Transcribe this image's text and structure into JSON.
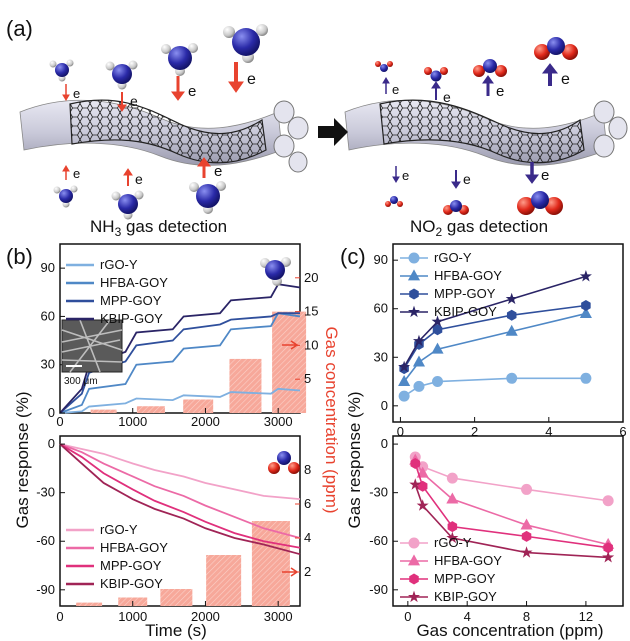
{
  "panels": {
    "a": {
      "label": "(a)",
      "left_caption": "NH",
      "left_caption_sub": "3",
      "left_caption_rest": " gas detection",
      "right_caption": "NO",
      "right_caption_sub": "2",
      "right_caption_rest": " gas detection",
      "electron_label": "e"
    },
    "b": {
      "label": "(b)",
      "y_title": "Gas response (%)",
      "y2_title": "Gas concentration (ppm)",
      "x_title": "Time (s)",
      "inset_scale": "300 μm",
      "x_ticks": [
        "0",
        "1000",
        "2000",
        "3000"
      ],
      "top_y_ticks": [
        "0",
        "30",
        "60",
        "90"
      ],
      "top_y2_ticks": [
        "5",
        "10",
        "15",
        "20"
      ],
      "bottom_y_ticks": [
        "0",
        "-30",
        "-60",
        "-90"
      ],
      "bottom_y2_ticks": [
        "2",
        "4",
        "6",
        "8"
      ],
      "legend_top": [
        "rGO-Y",
        "HFBA-GOY",
        "MPP-GOY",
        "KBIP-GOY"
      ],
      "legend_bottom": [
        "rGO-Y",
        "HFBA-GOY",
        "MPP-GOY",
        "KBIP-GOY"
      ]
    },
    "c": {
      "label": "(c)",
      "y_title": "Gas response (%)",
      "x_title": "Gas concentration (ppm)",
      "top_x_ticks": [
        "0",
        "2",
        "4",
        "6"
      ],
      "top_y_ticks": [
        "0",
        "30",
        "60",
        "90"
      ],
      "bottom_x_ticks": [
        "0",
        "4",
        "8",
        "12"
      ],
      "bottom_y_ticks": [
        "0",
        "-30",
        "-60",
        "-90"
      ],
      "legend_top": [
        "rGO-Y",
        "HFBA-GOY",
        "MPP-GOY",
        "KBIP-GOY"
      ],
      "legend_bottom": [
        "rGO-Y",
        "HFBA-GOY",
        "MPP-GOY",
        "KBIP-GOY"
      ]
    }
  },
  "colors": {
    "rGO_Y_nh3": "#7fb0e0",
    "HFBA_nh3": "#4f88c6",
    "MPP_nh3": "#2f4f9c",
    "KBIP_nh3": "#2a2466",
    "rGO_Y_no2": "#f2a2c8",
    "HFBA_no2": "#ec6aa6",
    "MPP_no2": "#e0307c",
    "KBIP_no2": "#a02456",
    "conc_bar": "#f7a89a",
    "accent_red": "#e8432f"
  },
  "chart_data": [
    {
      "type": "line",
      "panel": "b-top",
      "xlim": [
        0,
        3300
      ],
      "ylim": [
        0,
        105
      ],
      "y2lim": [
        0,
        25
      ],
      "series": [
        {
          "name": "rGO-Y",
          "x": [
            0,
            300,
            400,
            900,
            1050,
            1550,
            1700,
            2200,
            2350,
            2900,
            3000,
            3300
          ],
          "y": [
            0,
            1,
            4,
            6,
            9,
            8,
            11,
            10,
            13,
            12,
            15,
            14
          ]
        },
        {
          "name": "HFBA-GOY",
          "x": [
            0,
            300,
            400,
            900,
            1050,
            1550,
            1700,
            2200,
            2350,
            2900,
            3000,
            3300
          ],
          "y": [
            0,
            5,
            15,
            18,
            30,
            32,
            40,
            42,
            52,
            54,
            62,
            60
          ]
        },
        {
          "name": "MPP-GOY",
          "x": [
            0,
            300,
            400,
            900,
            1050,
            1550,
            1700,
            2200,
            2350,
            2900,
            3000,
            3300
          ],
          "y": [
            0,
            12,
            25,
            32,
            42,
            45,
            52,
            55,
            58,
            60,
            62,
            62
          ]
        },
        {
          "name": "KBIP-GOY",
          "x": [
            0,
            300,
            400,
            900,
            1050,
            1550,
            1700,
            2200,
            2350,
            2900,
            3000,
            3300
          ],
          "y": [
            0,
            15,
            30,
            38,
            50,
            52,
            60,
            62,
            70,
            72,
            80,
            78
          ]
        }
      ],
      "concentration_bars": {
        "x": [
          600,
          1250,
          1900,
          2550,
          3150
        ],
        "values": [
          0.5,
          1,
          2,
          8,
          15
        ]
      }
    },
    {
      "type": "line",
      "panel": "b-bottom",
      "xlim": [
        0,
        3300
      ],
      "ylim": [
        -100,
        5
      ],
      "y2lim": [
        0,
        10
      ],
      "series": [
        {
          "name": "rGO-Y",
          "x": [
            0,
            300,
            600,
            1000,
            1300,
            1700,
            2000,
            2400,
            2800,
            3300
          ],
          "y": [
            0,
            -3,
            -6,
            -12,
            -16,
            -20,
            -24,
            -28,
            -32,
            -34
          ]
        },
        {
          "name": "HFBA-GOY",
          "x": [
            0,
            300,
            600,
            1000,
            1300,
            1700,
            2000,
            2400,
            2800,
            3300
          ],
          "y": [
            0,
            -5,
            -12,
            -20,
            -26,
            -32,
            -38,
            -45,
            -52,
            -58
          ]
        },
        {
          "name": "MPP-GOY",
          "x": [
            0,
            300,
            600,
            1000,
            1300,
            1700,
            2000,
            2400,
            2800,
            3300
          ],
          "y": [
            0,
            -8,
            -18,
            -28,
            -35,
            -42,
            -48,
            -55,
            -60,
            -64
          ]
        },
        {
          "name": "KBIP-GOY",
          "x": [
            0,
            300,
            600,
            1000,
            1300,
            1700,
            2000,
            2400,
            2800,
            3300
          ],
          "y": [
            0,
            -12,
            -24,
            -34,
            -40,
            -46,
            -52,
            -58,
            -62,
            -68
          ]
        }
      ],
      "concentration_bars": {
        "x": [
          400,
          1000,
          1600,
          2250,
          2900
        ],
        "values": [
          0.2,
          0.5,
          1,
          3,
          5
        ]
      }
    },
    {
      "type": "line",
      "panel": "c-top",
      "xlim": [
        -0.2,
        6
      ],
      "ylim": [
        -10,
        100
      ],
      "series": [
        {
          "name": "rGO-Y",
          "marker": "circle",
          "x": [
            0.1,
            0.5,
            1,
            3,
            5
          ],
          "y": [
            6,
            12,
            15,
            17,
            17
          ]
        },
        {
          "name": "HFBA-GOY",
          "marker": "triangle",
          "x": [
            0.1,
            0.5,
            1,
            3,
            5
          ],
          "y": [
            15,
            27,
            35,
            46,
            57
          ]
        },
        {
          "name": "MPP-GOY",
          "marker": "hexagon",
          "x": [
            0.1,
            0.5,
            1,
            3,
            5
          ],
          "y": [
            23,
            38,
            47,
            56,
            62
          ]
        },
        {
          "name": "KBIP-GOY",
          "marker": "star",
          "x": [
            0.1,
            0.5,
            1,
            3,
            5
          ],
          "y": [
            24,
            40,
            52,
            66,
            80
          ]
        }
      ]
    },
    {
      "type": "line",
      "panel": "c-bottom",
      "xlim": [
        -1,
        14.5
      ],
      "ylim": [
        -100,
        5
      ],
      "series": [
        {
          "name": "rGO-Y",
          "marker": "circle",
          "x": [
            0.5,
            1,
            3,
            8,
            13.5
          ],
          "y": [
            -8,
            -14,
            -21,
            -28,
            -35
          ]
        },
        {
          "name": "HFBA-GOY",
          "marker": "triangle",
          "x": [
            0.5,
            1,
            3,
            8,
            13.5
          ],
          "y": [
            -10,
            -18,
            -34,
            -50,
            -62
          ]
        },
        {
          "name": "MPP-GOY",
          "marker": "hexagon",
          "x": [
            0.5,
            1,
            3,
            8,
            13.5
          ],
          "y": [
            -12,
            -26,
            -51,
            -57,
            -64
          ]
        },
        {
          "name": "KBIP-GOY",
          "marker": "star",
          "x": [
            0.5,
            1,
            3,
            8,
            13.5
          ],
          "y": [
            -25,
            -38,
            -58,
            -67,
            -70
          ]
        }
      ]
    }
  ]
}
